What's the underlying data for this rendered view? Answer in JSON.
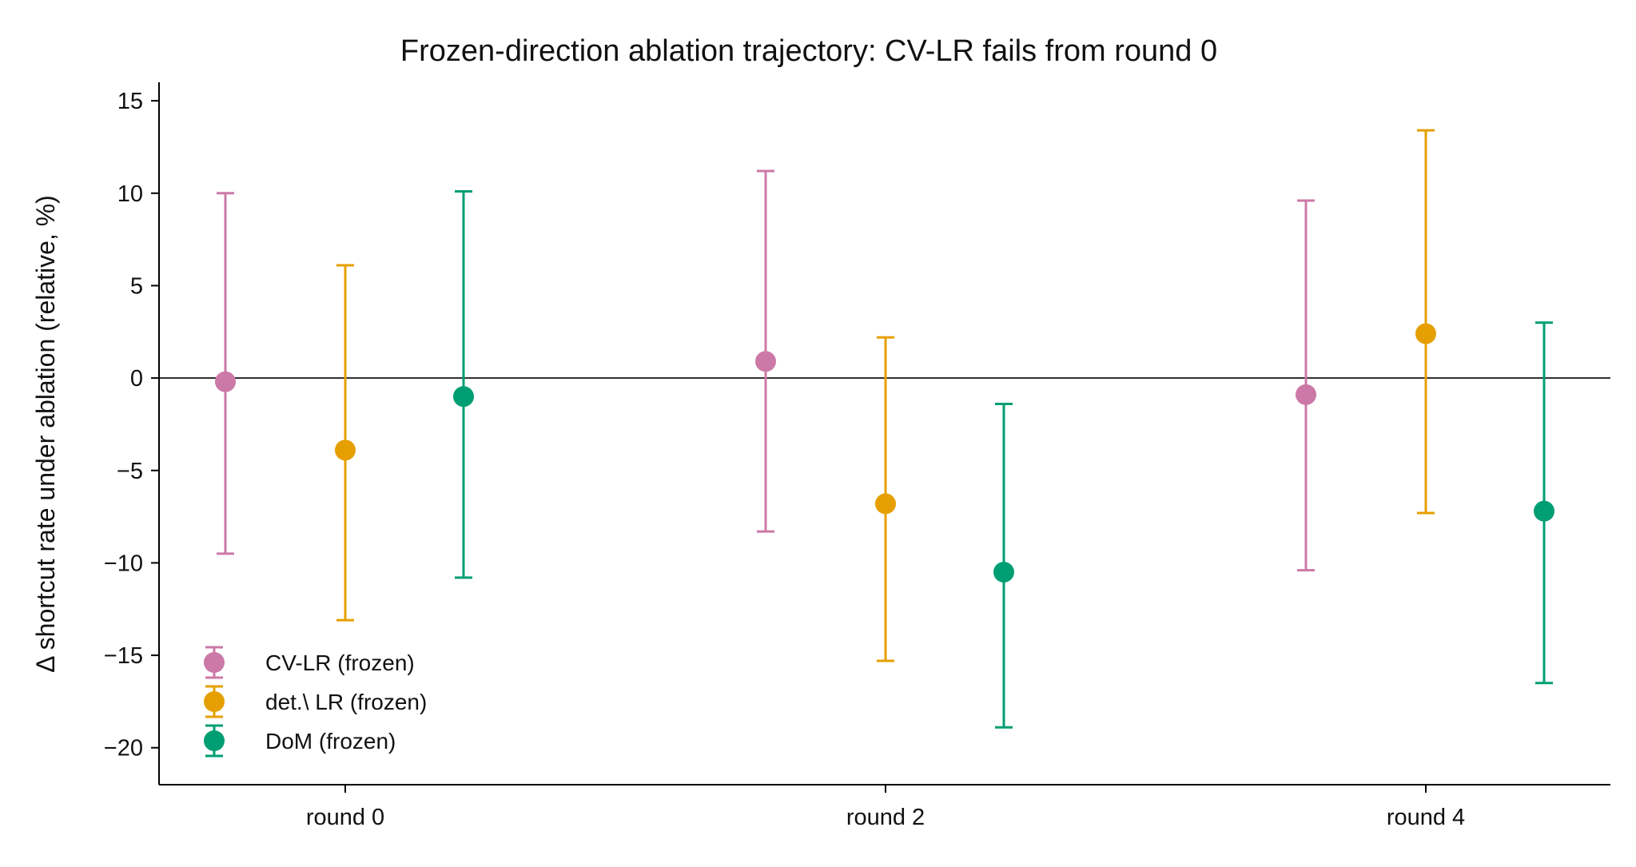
{
  "chart_data": {
    "type": "scatter",
    "title": "Frozen-direction ablation trajectory: CV-LR fails from round 0",
    "xlabel": "",
    "ylabel": "Δ shortcut rate under ablation (relative, %)",
    "categories": [
      "round 0",
      "round 2",
      "round 4"
    ],
    "ylim": [
      -22,
      16
    ],
    "yticks": [
      15,
      10,
      5,
      0,
      -5,
      -10,
      -15,
      -20
    ],
    "ytick_labels": [
      "15",
      "10",
      "5",
      "0",
      "−5",
      "−10",
      "−15",
      "−20"
    ],
    "reference_line_y": 0,
    "grid": false,
    "legend_position": "lower-left",
    "series": [
      {
        "name": "CV-LR (frozen)",
        "color": "#CC79A7",
        "values": [
          -0.2,
          0.9,
          -0.9
        ],
        "err_low": [
          -9.5,
          -8.3,
          -10.4
        ],
        "err_high": [
          10.0,
          11.2,
          9.6
        ]
      },
      {
        "name": "det.\\ LR (frozen)",
        "color": "#E69F00",
        "values": [
          -3.9,
          -6.8,
          2.4
        ],
        "err_low": [
          -13.1,
          -15.3,
          -7.3
        ],
        "err_high": [
          6.1,
          2.2,
          13.4
        ]
      },
      {
        "name": "DoM (frozen)",
        "color": "#009E73",
        "values": [
          -1.0,
          -10.5,
          -7.2
        ],
        "err_low": [
          -10.8,
          -18.9,
          -16.5
        ],
        "err_high": [
          10.1,
          -1.4,
          3.0
        ]
      }
    ]
  }
}
